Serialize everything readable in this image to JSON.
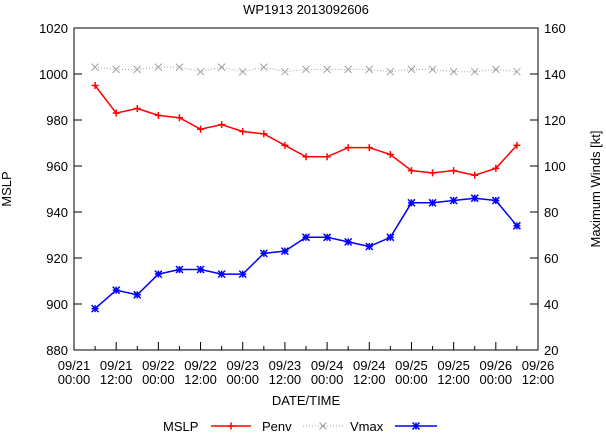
{
  "chart_data": {
    "type": "line",
    "title": "WP1913 2013092606",
    "xlabel": "DATE/TIME",
    "ylabel": "MSLP",
    "y2label": "Maximum Winds [kt]",
    "ylim": [
      880,
      1020
    ],
    "y2lim": [
      20,
      160
    ],
    "yticks": [
      880,
      900,
      920,
      940,
      960,
      980,
      1000,
      1020
    ],
    "y2ticks": [
      20,
      40,
      60,
      80,
      100,
      120,
      140,
      160
    ],
    "xticks": [
      {
        "date": "09/21",
        "time": "00:00"
      },
      {
        "date": "09/21",
        "time": "12:00"
      },
      {
        "date": "09/22",
        "time": "00:00"
      },
      {
        "date": "09/22",
        "time": "12:00"
      },
      {
        "date": "09/23",
        "time": "00:00"
      },
      {
        "date": "09/23",
        "time": "12:00"
      },
      {
        "date": "09/24",
        "time": "00:00"
      },
      {
        "date": "09/24",
        "time": "12:00"
      },
      {
        "date": "09/25",
        "time": "00:00"
      },
      {
        "date": "09/25",
        "time": "12:00"
      },
      {
        "date": "09/26",
        "time": "00:00"
      },
      {
        "date": "09/26",
        "time": "12:00"
      }
    ],
    "x_hours": [
      6,
      12,
      18,
      24,
      30,
      36,
      42,
      48,
      54,
      60,
      66,
      72,
      78,
      84,
      90,
      96,
      102,
      108,
      114,
      120,
      126
    ],
    "x_range_hours": [
      0,
      132
    ],
    "legend_position": "bottom",
    "series": [
      {
        "name": "MSLP",
        "axis": "left",
        "color": "#ff0000",
        "marker": "plus",
        "style": "solid",
        "values": [
          995,
          983,
          985,
          982,
          981,
          976,
          978,
          975,
          974,
          969,
          964,
          964,
          968,
          968,
          965,
          958,
          957,
          958,
          956,
          959,
          969
        ]
      },
      {
        "name": "Penv",
        "axis": "left",
        "color": "#a0a0a0",
        "marker": "cross",
        "style": "dotted",
        "values": [
          1003,
          1002,
          1002,
          1003,
          1003,
          1001,
          1003,
          1001,
          1003,
          1001,
          1002,
          1002,
          1002,
          1002,
          1001,
          1002,
          1002,
          1001,
          1001,
          1002,
          1001
        ]
      },
      {
        "name": "Vmax",
        "axis": "right",
        "color": "#0000ff",
        "marker": "star",
        "style": "solid",
        "values": [
          38,
          46,
          44,
          53,
          55,
          55,
          53,
          53,
          62,
          63,
          69,
          69,
          67,
          65,
          69,
          84,
          84,
          85,
          86,
          85,
          74
        ]
      }
    ]
  }
}
